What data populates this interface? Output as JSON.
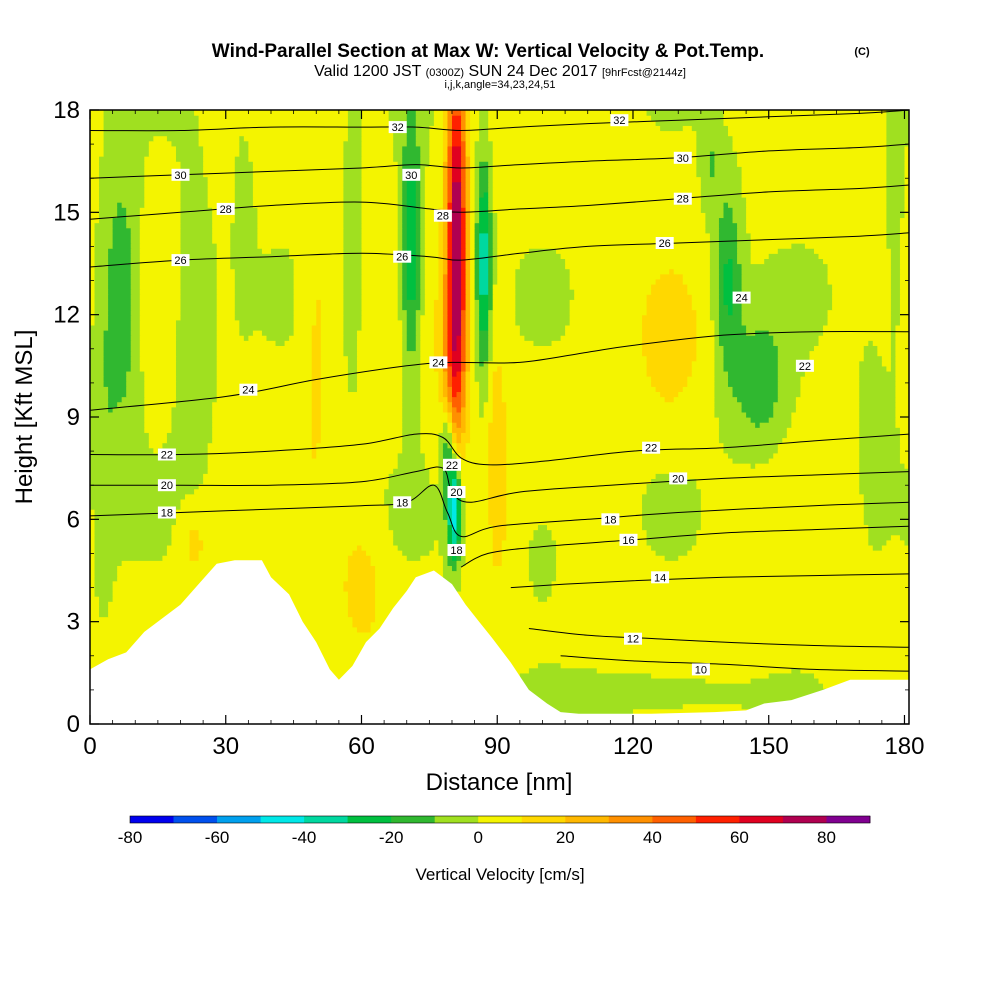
{
  "chart_data": {
    "type": "heatmap",
    "title": "Wind-Parallel Section at Max W: Vertical Velocity & Pot.Temp.",
    "title_units": "(C)",
    "subtitle_valid": "Valid 1200 JST",
    "subtitle_utc": "(0300Z)",
    "subtitle_date": "SUN 24 Dec 2017",
    "subtitle_fcst": "[9hrFcst@2144z]",
    "subtitle_indices": "i,j,k,angle=34,23,24,51",
    "xlabel": "Distance [nm]",
    "ylabel": "Height [Kft MSL]",
    "xlim": [
      0,
      181
    ],
    "ylim": [
      0,
      18
    ],
    "x_ticks": [
      0,
      30,
      60,
      90,
      120,
      150,
      180
    ],
    "y_ticks": [
      0,
      3,
      6,
      9,
      12,
      15,
      18
    ],
    "colorbar": {
      "label": "Vertical Velocity [cm/s]",
      "ticks": [
        -80,
        -60,
        -40,
        -20,
        0,
        20,
        40,
        60,
        80
      ],
      "bins": [
        {
          "min": -80,
          "max": -70,
          "color": "#0000ee"
        },
        {
          "min": -70,
          "max": -60,
          "color": "#0050ee"
        },
        {
          "min": -60,
          "max": -50,
          "color": "#00a0ee"
        },
        {
          "min": -50,
          "max": -40,
          "color": "#00e8e8"
        },
        {
          "min": -40,
          "max": -30,
          "color": "#00d8a0"
        },
        {
          "min": -30,
          "max": -20,
          "color": "#00c040"
        },
        {
          "min": -20,
          "max": -10,
          "color": "#30b830"
        },
        {
          "min": -10,
          "max": 0,
          "color": "#a0e020"
        },
        {
          "min": 0,
          "max": 10,
          "color": "#f4f400"
        },
        {
          "min": 10,
          "max": 20,
          "color": "#ffd800"
        },
        {
          "min": 20,
          "max": 30,
          "color": "#ffb800"
        },
        {
          "min": 30,
          "max": 40,
          "color": "#ff9000"
        },
        {
          "min": 40,
          "max": 50,
          "color": "#ff6000"
        },
        {
          "min": 50,
          "max": 60,
          "color": "#ff2000"
        },
        {
          "min": 60,
          "max": 70,
          "color": "#e00020"
        },
        {
          "min": 70,
          "max": 80,
          "color": "#b00050"
        },
        {
          "min": 80,
          "max": 90,
          "color": "#800090"
        }
      ]
    },
    "terrain": [
      [
        0,
        1.6
      ],
      [
        4,
        1.9
      ],
      [
        8,
        2.1
      ],
      [
        12,
        2.7
      ],
      [
        16,
        3.1
      ],
      [
        20,
        3.5
      ],
      [
        24,
        4.1
      ],
      [
        28,
        4.7
      ],
      [
        32,
        4.8
      ],
      [
        38,
        4.8
      ],
      [
        40,
        4.3
      ],
      [
        44,
        3.8
      ],
      [
        47,
        3.0
      ],
      [
        50,
        2.4
      ],
      [
        53,
        1.6
      ],
      [
        55,
        1.3
      ],
      [
        58,
        1.7
      ],
      [
        61,
        2.4
      ],
      [
        64,
        2.8
      ],
      [
        67,
        3.4
      ],
      [
        70,
        3.9
      ],
      [
        72,
        4.3
      ],
      [
        76,
        4.5
      ],
      [
        80,
        4.1
      ],
      [
        83,
        3.5
      ],
      [
        86,
        3.0
      ],
      [
        89,
        2.5
      ],
      [
        93,
        1.8
      ],
      [
        97,
        1.0
      ],
      [
        101,
        0.6
      ],
      [
        104,
        0.35
      ],
      [
        108,
        0.3
      ],
      [
        116,
        0.3
      ],
      [
        124,
        0.3
      ],
      [
        138,
        0.35
      ],
      [
        145,
        0.4
      ],
      [
        149,
        0.6
      ],
      [
        155,
        0.7
      ],
      [
        162,
        1.0
      ],
      [
        168,
        1.3
      ],
      [
        176,
        1.3
      ],
      [
        181,
        1.3
      ]
    ],
    "w_features": [
      {
        "x": 81,
        "z": 14.5,
        "sx": 2.2,
        "sz": 5.5,
        "w": 75
      },
      {
        "x": 80,
        "z": 10.5,
        "sx": 3.0,
        "sz": 2.5,
        "w": 20
      },
      {
        "x": 71,
        "z": 14.0,
        "sx": 2.2,
        "sz": 3.5,
        "w": -35
      },
      {
        "x": 87,
        "z": 13.5,
        "sx": 1.6,
        "sz": 3.0,
        "w": -40
      },
      {
        "x": 80.5,
        "z": 6.3,
        "sx": 1.6,
        "sz": 1.6,
        "w": -55
      },
      {
        "x": 79,
        "z": 8.2,
        "sx": 1.5,
        "sz": 1.3,
        "w": -25
      },
      {
        "x": 7,
        "z": 12.5,
        "sx": 4.0,
        "sz": 4.0,
        "w": -22
      },
      {
        "x": 3,
        "z": 8.0,
        "sx": 2.5,
        "sz": 5.0,
        "w": -8
      },
      {
        "x": 23,
        "z": 12.0,
        "sx": 5.0,
        "sz": 4.0,
        "w": -10
      },
      {
        "x": 34,
        "z": 15.0,
        "sx": 2.0,
        "sz": 2.5,
        "w": -10
      },
      {
        "x": 58,
        "z": 14.0,
        "sx": 2.0,
        "sz": 4.0,
        "w": -10
      },
      {
        "x": 50,
        "z": 12.0,
        "sx": 3.0,
        "sz": 5.0,
        "w": 10
      },
      {
        "x": 141,
        "z": 13.0,
        "sx": 3.0,
        "sz": 2.8,
        "w": -25
      },
      {
        "x": 148,
        "z": 10.0,
        "sx": 6.0,
        "sz": 2.0,
        "w": -20
      },
      {
        "x": 137,
        "z": 16.5,
        "sx": 2.0,
        "sz": 1.8,
        "w": -12
      },
      {
        "x": 128,
        "z": 11.0,
        "sx": 6.0,
        "sz": 2.0,
        "w": 12
      },
      {
        "x": 173,
        "z": 8.5,
        "sx": 3.5,
        "sz": 3.0,
        "w": -8
      },
      {
        "x": 178,
        "z": 14.0,
        "sx": 2.0,
        "sz": 4.0,
        "w": -8
      },
      {
        "x": 125,
        "z": 0.9,
        "sx": 18.0,
        "sz": 0.7,
        "w": -10
      },
      {
        "x": 100,
        "z": 5.0,
        "sx": 4.0,
        "sz": 1.5,
        "w": -10
      },
      {
        "x": 60,
        "z": 4.0,
        "sx": 4.0,
        "sz": 1.5,
        "w": 15
      },
      {
        "x": 90,
        "z": 8.0,
        "sx": 2.0,
        "sz": 3.5,
        "w": 15
      },
      {
        "x": 23,
        "z": 5.3,
        "sx": 3.0,
        "sz": 1.0,
        "w": 12
      }
    ],
    "isentropes": [
      {
        "theta": 10,
        "points": [
          [
            104,
            2.0
          ],
          [
            120,
            1.85
          ],
          [
            140,
            1.75
          ],
          [
            160,
            1.6
          ],
          [
            181,
            1.55
          ]
        ]
      },
      {
        "theta": 12,
        "points": [
          [
            97,
            2.8
          ],
          [
            110,
            2.6
          ],
          [
            125,
            2.5
          ],
          [
            140,
            2.4
          ],
          [
            160,
            2.3
          ],
          [
            181,
            2.25
          ]
        ]
      },
      {
        "theta": 14,
        "points": [
          [
            93,
            4.0
          ],
          [
            105,
            4.1
          ],
          [
            120,
            4.2
          ],
          [
            140,
            4.3
          ],
          [
            160,
            4.35
          ],
          [
            181,
            4.4
          ]
        ]
      },
      {
        "theta": 16,
        "points": [
          [
            82,
            4.6
          ],
          [
            88,
            5.0
          ],
          [
            100,
            5.2
          ],
          [
            120,
            5.4
          ],
          [
            140,
            5.6
          ],
          [
            160,
            5.7
          ],
          [
            181,
            5.8
          ]
        ]
      },
      {
        "theta": 18,
        "points": [
          [
            0,
            6.1
          ],
          [
            20,
            6.2
          ],
          [
            40,
            6.3
          ],
          [
            60,
            6.4
          ],
          [
            70,
            6.5
          ],
          [
            76,
            7.0
          ],
          [
            79,
            6.2
          ],
          [
            82,
            5.5
          ],
          [
            90,
            5.8
          ],
          [
            110,
            6.0
          ],
          [
            130,
            6.2
          ],
          [
            160,
            6.4
          ],
          [
            181,
            6.5
          ]
        ]
      },
      {
        "theta": 20,
        "points": [
          [
            0,
            7.0
          ],
          [
            20,
            7.0
          ],
          [
            40,
            7.0
          ],
          [
            60,
            7.1
          ],
          [
            72,
            7.4
          ],
          [
            78,
            7.5
          ],
          [
            80,
            6.8
          ],
          [
            84,
            6.5
          ],
          [
            95,
            6.8
          ],
          [
            115,
            7.0
          ],
          [
            140,
            7.2
          ],
          [
            160,
            7.3
          ],
          [
            181,
            7.4
          ]
        ]
      },
      {
        "theta": 22,
        "points": [
          [
            0,
            7.9
          ],
          [
            20,
            7.9
          ],
          [
            40,
            8.0
          ],
          [
            60,
            8.2
          ],
          [
            72,
            8.5
          ],
          [
            78,
            8.4
          ],
          [
            82,
            7.8
          ],
          [
            88,
            7.6
          ],
          [
            100,
            7.7
          ],
          [
            120,
            8.0
          ],
          [
            140,
            8.1
          ],
          [
            160,
            8.3
          ],
          [
            181,
            8.5
          ]
        ]
      },
      {
        "theta": 24,
        "points": [
          [
            0,
            9.2
          ],
          [
            30,
            9.6
          ],
          [
            50,
            10.1
          ],
          [
            70,
            10.5
          ],
          [
            80,
            10.6
          ],
          [
            95,
            10.6
          ],
          [
            110,
            10.9
          ],
          [
            120,
            11.1
          ],
          [
            140,
            11.4
          ],
          [
            160,
            11.5
          ],
          [
            181,
            11.5
          ]
        ]
      },
      {
        "theta": 26,
        "points": [
          [
            0,
            13.4
          ],
          [
            20,
            13.6
          ],
          [
            40,
            13.7
          ],
          [
            60,
            13.8
          ],
          [
            75,
            13.7
          ],
          [
            82,
            13.6
          ],
          [
            95,
            13.8
          ],
          [
            110,
            14.0
          ],
          [
            130,
            14.1
          ],
          [
            150,
            14.2
          ],
          [
            170,
            14.3
          ],
          [
            181,
            14.4
          ]
        ]
      },
      {
        "theta": 28,
        "points": [
          [
            0,
            14.8
          ],
          [
            20,
            15.0
          ],
          [
            40,
            15.2
          ],
          [
            60,
            15.3
          ],
          [
            75,
            15.1
          ],
          [
            82,
            15.0
          ],
          [
            95,
            15.1
          ],
          [
            110,
            15.2
          ],
          [
            130,
            15.4
          ],
          [
            150,
            15.6
          ],
          [
            170,
            15.7
          ],
          [
            181,
            15.8
          ]
        ]
      },
      {
        "theta": 30,
        "points": [
          [
            0,
            16.0
          ],
          [
            20,
            16.1
          ],
          [
            40,
            16.2
          ],
          [
            60,
            16.3
          ],
          [
            72,
            16.4
          ],
          [
            82,
            16.3
          ],
          [
            95,
            16.4
          ],
          [
            110,
            16.5
          ],
          [
            130,
            16.6
          ],
          [
            150,
            16.8
          ],
          [
            170,
            16.9
          ],
          [
            181,
            17.0
          ]
        ]
      },
      {
        "theta": 32,
        "points": [
          [
            0,
            17.4
          ],
          [
            20,
            17.4
          ],
          [
            40,
            17.5
          ],
          [
            60,
            17.5
          ],
          [
            72,
            17.5
          ],
          [
            82,
            17.4
          ],
          [
            95,
            17.5
          ],
          [
            110,
            17.6
          ],
          [
            130,
            17.7
          ],
          [
            150,
            17.8
          ],
          [
            170,
            17.9
          ],
          [
            181,
            18.0
          ]
        ]
      }
    ],
    "isentrope_labels": [
      {
        "text": "10",
        "x": 135,
        "z": 1.6
      },
      {
        "text": "12",
        "x": 120,
        "z": 2.5
      },
      {
        "text": "14",
        "x": 126,
        "z": 4.3
      },
      {
        "text": "16",
        "x": 119,
        "z": 5.4
      },
      {
        "text": "18",
        "x": 115,
        "z": 6.0
      },
      {
        "text": "18",
        "x": 69,
        "z": 6.5
      },
      {
        "text": "18",
        "x": 81,
        "z": 5.1
      },
      {
        "text": "18",
        "x": 17,
        "z": 6.2
      },
      {
        "text": "20",
        "x": 17,
        "z": 7.0
      },
      {
        "text": "20",
        "x": 81,
        "z": 6.8
      },
      {
        "text": "20",
        "x": 130,
        "z": 7.2
      },
      {
        "text": "22",
        "x": 17,
        "z": 7.9
      },
      {
        "text": "22",
        "x": 80,
        "z": 7.6
      },
      {
        "text": "22",
        "x": 124,
        "z": 8.1
      },
      {
        "text": "22",
        "x": 158,
        "z": 10.5
      },
      {
        "text": "24",
        "x": 35,
        "z": 9.8
      },
      {
        "text": "24",
        "x": 77,
        "z": 10.6
      },
      {
        "text": "24",
        "x": 144,
        "z": 12.5
      },
      {
        "text": "26",
        "x": 20,
        "z": 13.6
      },
      {
        "text": "26",
        "x": 69,
        "z": 13.7
      },
      {
        "text": "26",
        "x": 127,
        "z": 14.1
      },
      {
        "text": "28",
        "x": 30,
        "z": 15.1
      },
      {
        "text": "28",
        "x": 78,
        "z": 14.9
      },
      {
        "text": "28",
        "x": 131,
        "z": 15.4
      },
      {
        "text": "30",
        "x": 20,
        "z": 16.1
      },
      {
        "text": "30",
        "x": 71,
        "z": 16.1
      },
      {
        "text": "30",
        "x": 131,
        "z": 16.6
      },
      {
        "text": "32",
        "x": 68,
        "z": 17.5
      },
      {
        "text": "32",
        "x": 117,
        "z": 17.7
      }
    ]
  }
}
